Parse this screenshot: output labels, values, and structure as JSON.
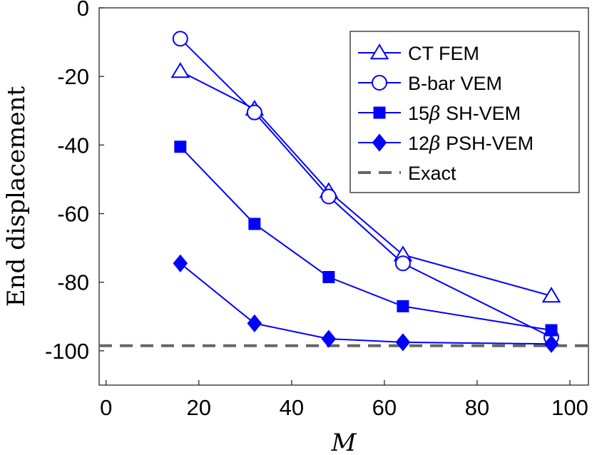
{
  "chart_data": {
    "type": "line",
    "title": "",
    "xlabel": "M",
    "ylabel": "End displacement",
    "xlim": [
      -1.5,
      104
    ],
    "ylim": [
      -110,
      0
    ],
    "xticks": [
      0,
      20,
      40,
      60,
      80,
      100
    ],
    "yticks": [
      0,
      -20,
      -40,
      -60,
      -80,
      -100
    ],
    "grid": false,
    "legend_position": "top-right",
    "series": [
      {
        "name": "CT FEM",
        "marker": "triangle",
        "filled": false,
        "color": "#0000ff",
        "x": [
          16,
          32,
          48,
          64,
          96
        ],
        "y": [
          -18.5,
          -29.5,
          -53.5,
          -72,
          -84
        ]
      },
      {
        "name": "B-bar VEM",
        "marker": "circle",
        "filled": false,
        "color": "#0000ff",
        "x": [
          16,
          32,
          48,
          64,
          96
        ],
        "y": [
          -9,
          -30.5,
          -55,
          -74.5,
          -96
        ]
      },
      {
        "name": "15β SH-VEM",
        "marker": "square",
        "filled": true,
        "color": "#0000ff",
        "x": [
          16,
          32,
          48,
          64,
          96
        ],
        "y": [
          -40.5,
          -63,
          -78.5,
          -87,
          -94
        ]
      },
      {
        "name": "12β PSH-VEM",
        "marker": "diamond",
        "filled": true,
        "color": "#0000ff",
        "x": [
          16,
          32,
          48,
          64,
          96
        ],
        "y": [
          -74.5,
          -92,
          -96.5,
          -97.5,
          -98
        ]
      }
    ],
    "reference_lines": [
      {
        "name": "Exact",
        "y": -98.5,
        "style": "dashed",
        "color": "#666666"
      }
    ],
    "legend": [
      {
        "label_main": "CT FEM",
        "prefix": "",
        "greek": "",
        "marker": "triangle"
      },
      {
        "label_main": "B-bar VEM",
        "prefix": "",
        "greek": "",
        "marker": "circle"
      },
      {
        "label_main": " SH-VEM",
        "prefix": "15",
        "greek": "β",
        "marker": "square"
      },
      {
        "label_main": " PSH-VEM",
        "prefix": "12",
        "greek": "β",
        "marker": "diamond"
      },
      {
        "label_main": "Exact",
        "prefix": "",
        "greek": "",
        "marker": "dashed-line"
      }
    ]
  }
}
